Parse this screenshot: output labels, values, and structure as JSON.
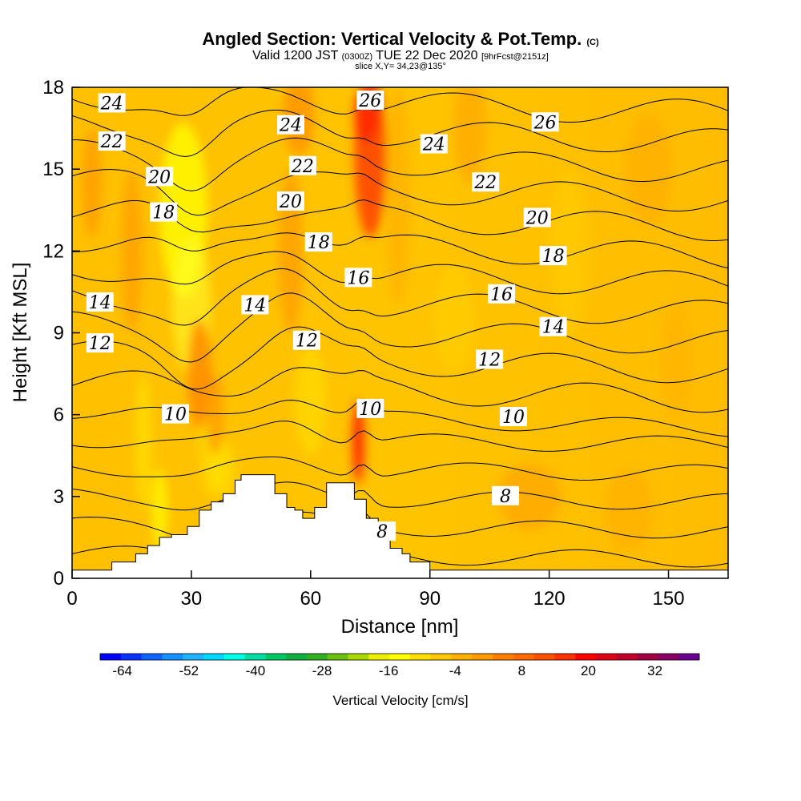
{
  "header": {
    "title": "Angled Section: Vertical Velocity & Pot.Temp.",
    "title_unit": "(C)",
    "subtitle_pre": "Valid 1200 JST",
    "subtitle_z": "(0300Z)",
    "subtitle_mid": "TUE 22 Dec 2020",
    "subtitle_fcst": "[9hrFcst@2151z]",
    "slice": "slice X,Y= 34,23@135°"
  },
  "chart_data": {
    "type": "heatmap",
    "title": "Angled Section: Vertical Velocity & Pot.Temp.",
    "xlabel": "Distance [nm]",
    "ylabel": "Height [Kft MSL]",
    "xlim": [
      0,
      165
    ],
    "ylim": [
      0,
      18
    ],
    "x_ticks": [
      0,
      30,
      60,
      90,
      120,
      150
    ],
    "y_ticks": [
      0,
      3,
      6,
      9,
      12,
      15,
      18
    ],
    "colorbar": {
      "label": "Vertical Velocity [cm/s]",
      "tick_labels": [
        -64,
        -52,
        -40,
        -28,
        -16,
        -4,
        8,
        20,
        32
      ],
      "range": [
        -68,
        40
      ],
      "colors": [
        "#0000ff",
        "#0a32ff",
        "#0f64ff",
        "#1490ff",
        "#1eb4ff",
        "#00d8ff",
        "#00ffe4",
        "#00e0a0",
        "#00c864",
        "#10b040",
        "#30b020",
        "#6cc010",
        "#a8d800",
        "#ecf000",
        "#ffff00",
        "#ffe000",
        "#ffc800",
        "#ffb000",
        "#ff9a00",
        "#ff8000",
        "#ff6a00",
        "#ff5000",
        "#ff3000",
        "#ff0000",
        "#e00018",
        "#c00028",
        "#a00040",
        "#8a0060",
        "#6a0090"
      ]
    },
    "theta_contours": [
      {
        "value": 8,
        "label_positions": [
          [
            78,
            1.7
          ],
          [
            109,
            3
          ]
        ]
      },
      {
        "value": 10,
        "label_positions": [
          [
            26,
            6
          ],
          [
            75,
            6.2
          ],
          [
            111,
            5.9
          ]
        ]
      },
      {
        "value": 12,
        "label_positions": [
          [
            7,
            8.6
          ],
          [
            59,
            8.7
          ],
          [
            105,
            8
          ]
        ]
      },
      {
        "value": 14,
        "label_positions": [
          [
            7,
            10.1
          ],
          [
            46,
            10
          ],
          [
            121,
            9.2
          ]
        ]
      },
      {
        "value": 16,
        "label_positions": [
          [
            72,
            11
          ],
          [
            108,
            10.4
          ]
        ]
      },
      {
        "value": 18,
        "label_positions": [
          [
            23,
            13.4
          ],
          [
            62,
            12.3
          ],
          [
            121,
            11.8
          ]
        ]
      },
      {
        "value": 20,
        "label_positions": [
          [
            22,
            14.7
          ],
          [
            55,
            13.8
          ],
          [
            117,
            13.2
          ]
        ]
      },
      {
        "value": 22,
        "label_positions": [
          [
            10,
            16
          ],
          [
            58,
            15.1
          ],
          [
            104,
            14.5
          ]
        ]
      },
      {
        "value": 24,
        "label_positions": [
          [
            10,
            17.4
          ],
          [
            55,
            16.6
          ],
          [
            91,
            15.9
          ]
        ]
      },
      {
        "value": 26,
        "label_positions": [
          [
            75,
            17.5
          ],
          [
            119,
            16.7
          ]
        ]
      }
    ],
    "terrain_max_kft": 3.8
  }
}
